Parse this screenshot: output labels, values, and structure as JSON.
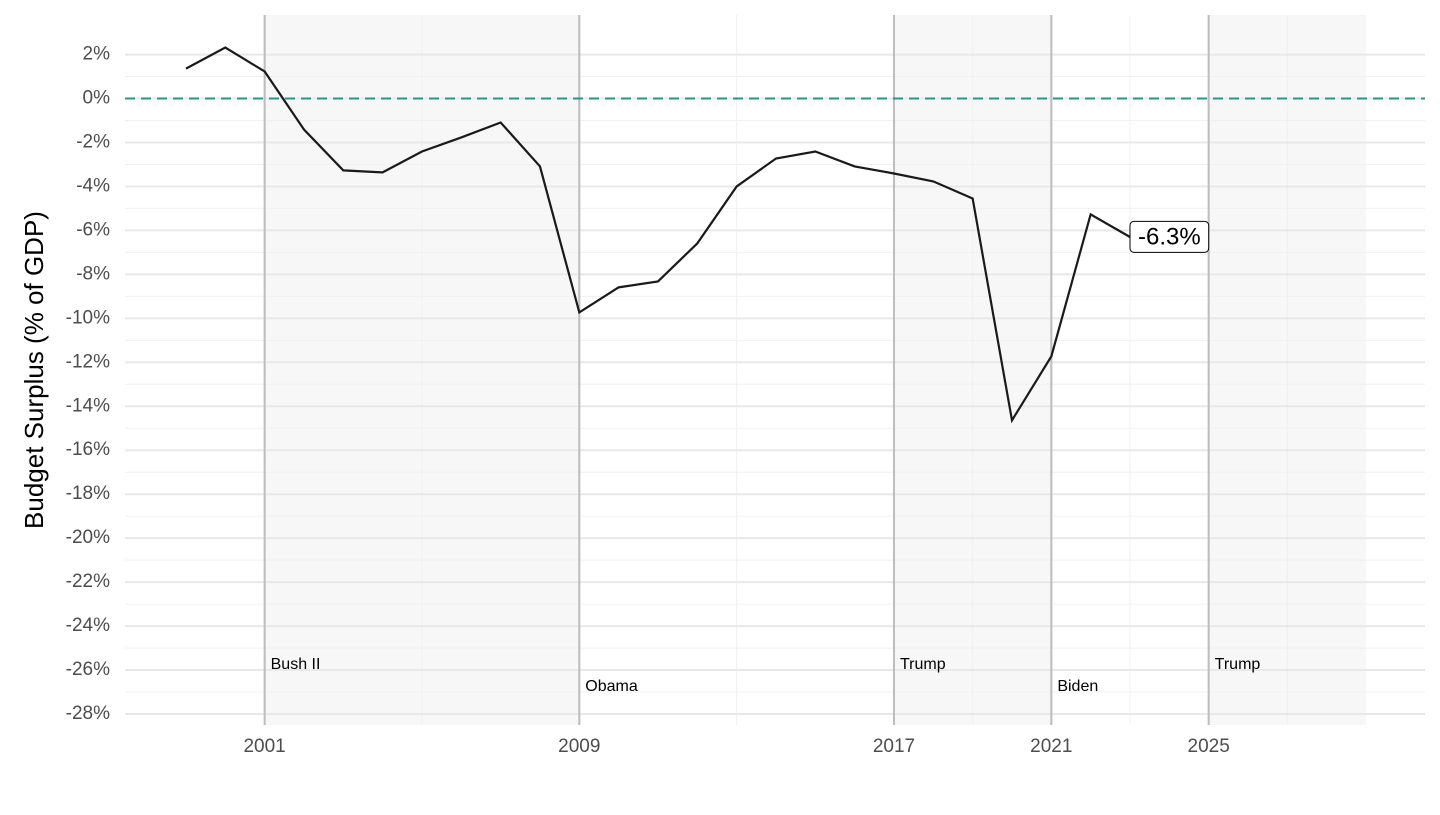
{
  "chart_data": {
    "type": "line",
    "y_label": "Budget Surplus (% of GDP)",
    "x": [
      1999,
      2000,
      2001,
      2002,
      2003,
      2004,
      2005,
      2006,
      2007,
      2008,
      2009,
      2010,
      2011,
      2012,
      2013,
      2014,
      2015,
      2016,
      2017,
      2018,
      2019,
      2020,
      2021,
      2022,
      2023
    ],
    "values": [
      1.36,
      2.32,
      1.23,
      -1.41,
      -3.27,
      -3.36,
      -2.41,
      -1.77,
      -1.09,
      -3.09,
      -9.73,
      -8.59,
      -8.32,
      -6.59,
      -4.0,
      -2.73,
      -2.41,
      -3.09,
      -3.41,
      -3.77,
      -4.55,
      -14.64,
      -11.73,
      -5.27,
      -6.3
    ],
    "value_labels": [
      null,
      null,
      null,
      null,
      null,
      null,
      null,
      null,
      null,
      null,
      null,
      null,
      null,
      null,
      null,
      null,
      null,
      null,
      null,
      null,
      null,
      null,
      null,
      null,
      "-6.3%"
    ],
    "color": "#1a1a1a",
    "reference_line": {
      "value": 0,
      "color": "#2a9393"
    },
    "xlim": [
      1997.45,
      2030.5
    ],
    "ylim": [
      -28.5,
      3.8
    ],
    "xticks": [
      2001,
      2009,
      2017,
      2021,
      2025
    ],
    "yticks": [
      {
        "value": 2,
        "label": "2%"
      },
      {
        "value": 0,
        "label": "0%"
      },
      {
        "value": -2,
        "label": "-2%"
      },
      {
        "value": -4,
        "label": "-4%"
      },
      {
        "value": -6,
        "label": "-6%"
      },
      {
        "value": -8,
        "label": "-8%"
      },
      {
        "value": -10,
        "label": "-10%"
      },
      {
        "value": -12,
        "label": "-12%"
      },
      {
        "value": -14,
        "label": "-14%"
      },
      {
        "value": -16,
        "label": "-16%"
      },
      {
        "value": -18,
        "label": "-18%"
      },
      {
        "value": -20,
        "label": "-20%"
      },
      {
        "value": -22,
        "label": "-22%"
      },
      {
        "value": -24,
        "label": "-24%"
      },
      {
        "value": -26,
        "label": "-26%"
      },
      {
        "value": -28,
        "label": "-28%"
      }
    ],
    "grid": true,
    "presidents": [
      {
        "name": "Bush II",
        "start": 2001,
        "end": 2009,
        "shaded": true
      },
      {
        "name": "Obama",
        "start": 2009,
        "end": 2017,
        "shaded": false
      },
      {
        "name": "Trump",
        "start": 2017,
        "end": 2021,
        "shaded": true
      },
      {
        "name": "Biden",
        "start": 2021,
        "end": 2025,
        "shaded": false
      },
      {
        "name": "Trump",
        "start": 2025,
        "end": 2029,
        "shaded": true
      }
    ]
  }
}
